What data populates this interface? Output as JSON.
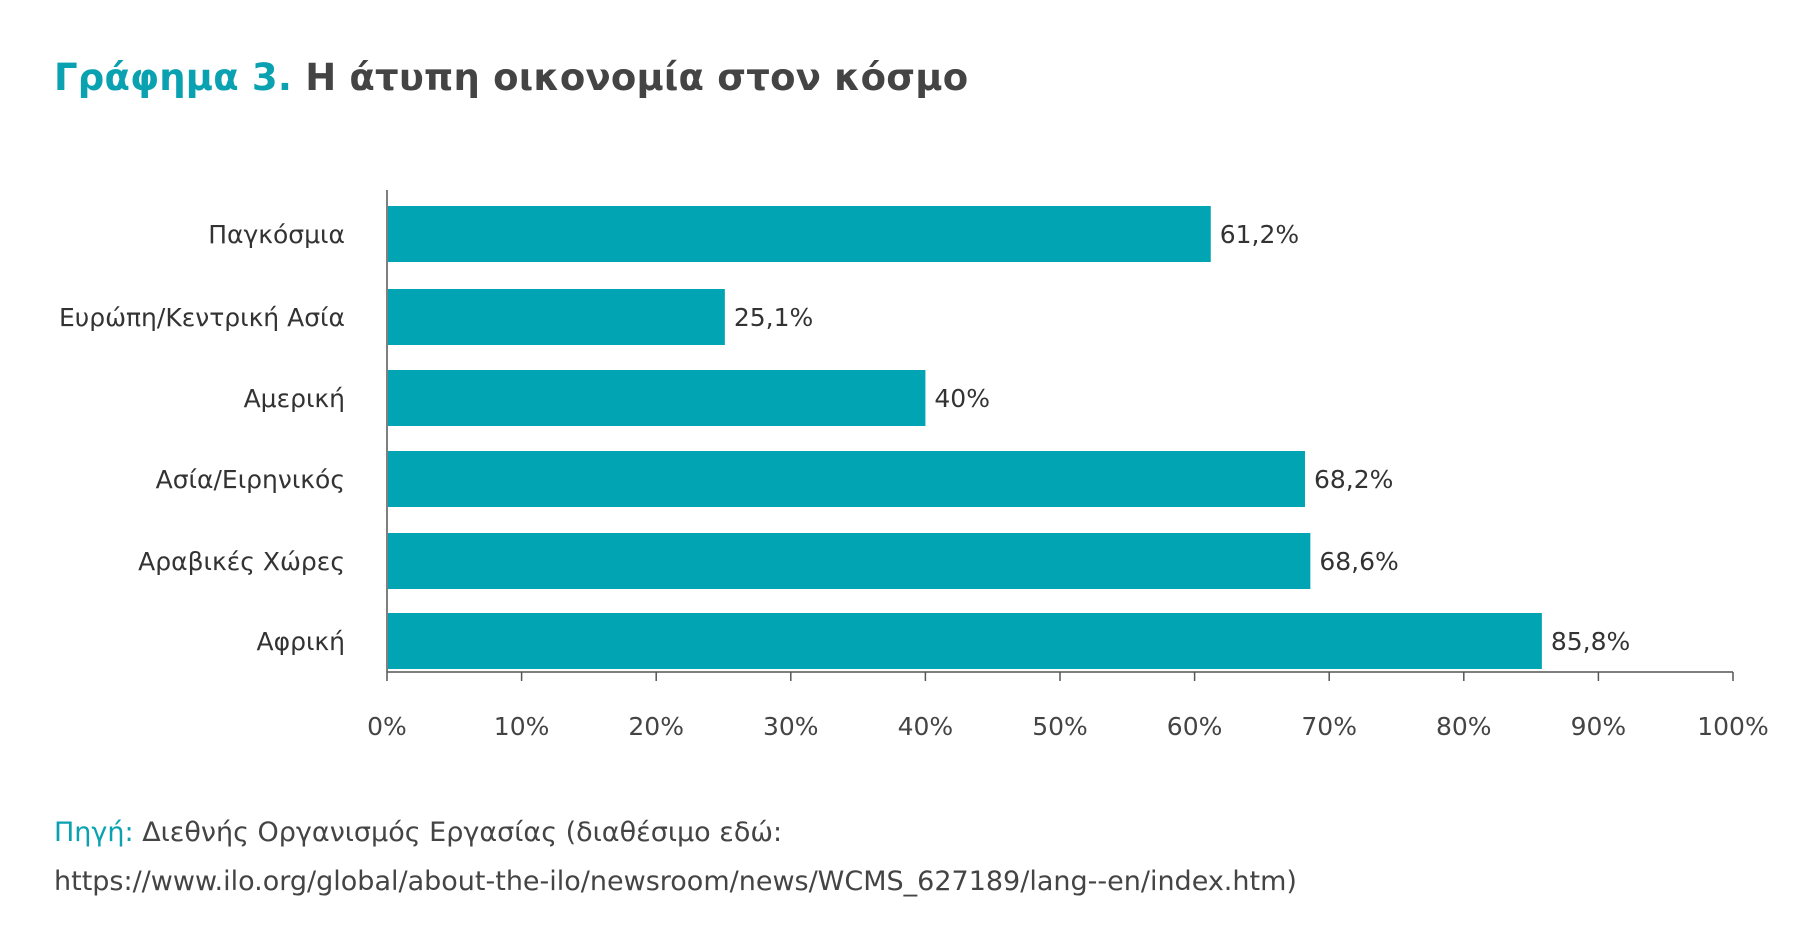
{
  "title": {
    "lead": "Γράφημα 3.",
    "rest": "Η άτυπη οικονομία στον κόσμο"
  },
  "source": {
    "lead": "Πηγή:",
    "text": "Διεθνής Οργανισμός Εργασίας (διαθέσιμο εδώ:",
    "url": "https://www.ilo.org/global/about-the-ilo/newsroom/news/WCMS_627189/lang--en/index.htm)"
  },
  "colors": {
    "bar": "#00a4b3",
    "accent": "#0aa1b1",
    "axis": "#555555"
  },
  "chart_data": {
    "type": "bar",
    "orientation": "horizontal",
    "categories": [
      "Παγκόσμια",
      "Ευρώπη/Κεντρική Ασία",
      "Αμερική",
      "Ασία/Ειρηνικός",
      "Αραβικές Χώρες",
      "Αφρική"
    ],
    "values": [
      61.2,
      25.1,
      40,
      68.2,
      68.6,
      85.8
    ],
    "value_labels": [
      "61,2%",
      "25,1%",
      "40%",
      "68,2%",
      "68,6%",
      "85,8%"
    ],
    "xlim": [
      0,
      100
    ],
    "xticks": [
      "0%",
      "10%",
      "20%",
      "30%",
      "40%",
      "50%",
      "60%",
      "70%",
      "80%",
      "90%",
      "100%"
    ],
    "grid": false,
    "legend": "none"
  }
}
